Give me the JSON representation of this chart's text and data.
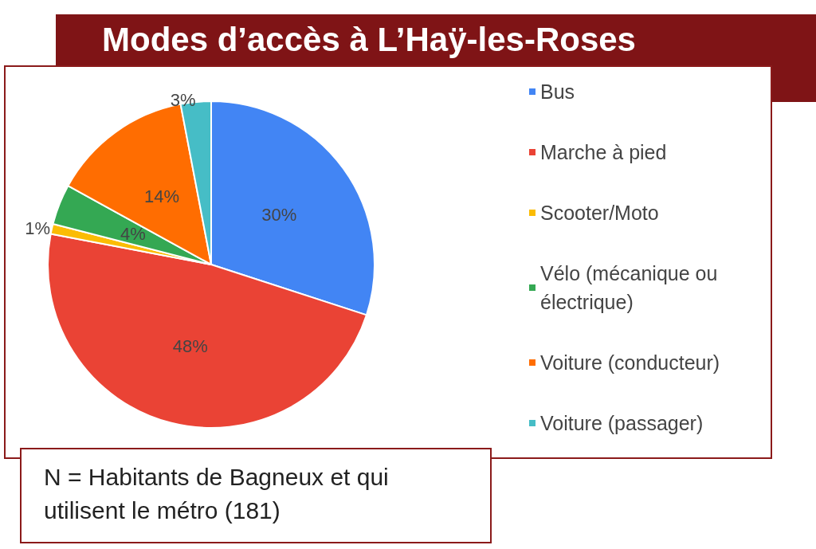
{
  "chart_data": {
    "type": "pie",
    "title": "Modes d’accès à L’Haÿ-les-Roses",
    "categories": [
      "Bus",
      "Marche à pied",
      "Scooter/Moto",
      "Vélo (mécanique ou électrique)",
      "Voiture (conducteur)",
      "Voiture (passager)"
    ],
    "values": [
      30,
      48,
      1,
      4,
      14,
      3
    ],
    "colors": [
      "#4285f4",
      "#ea4335",
      "#fbbc04",
      "#34a853",
      "#ff6d01",
      "#46bdc6"
    ],
    "value_labels": [
      "30%",
      "48%",
      "1%",
      "4%",
      "14%",
      "3%"
    ],
    "legend": "right",
    "annotations": [
      "N = Habitants de Bagneux et qui utilisent le métro (181)"
    ]
  }
}
